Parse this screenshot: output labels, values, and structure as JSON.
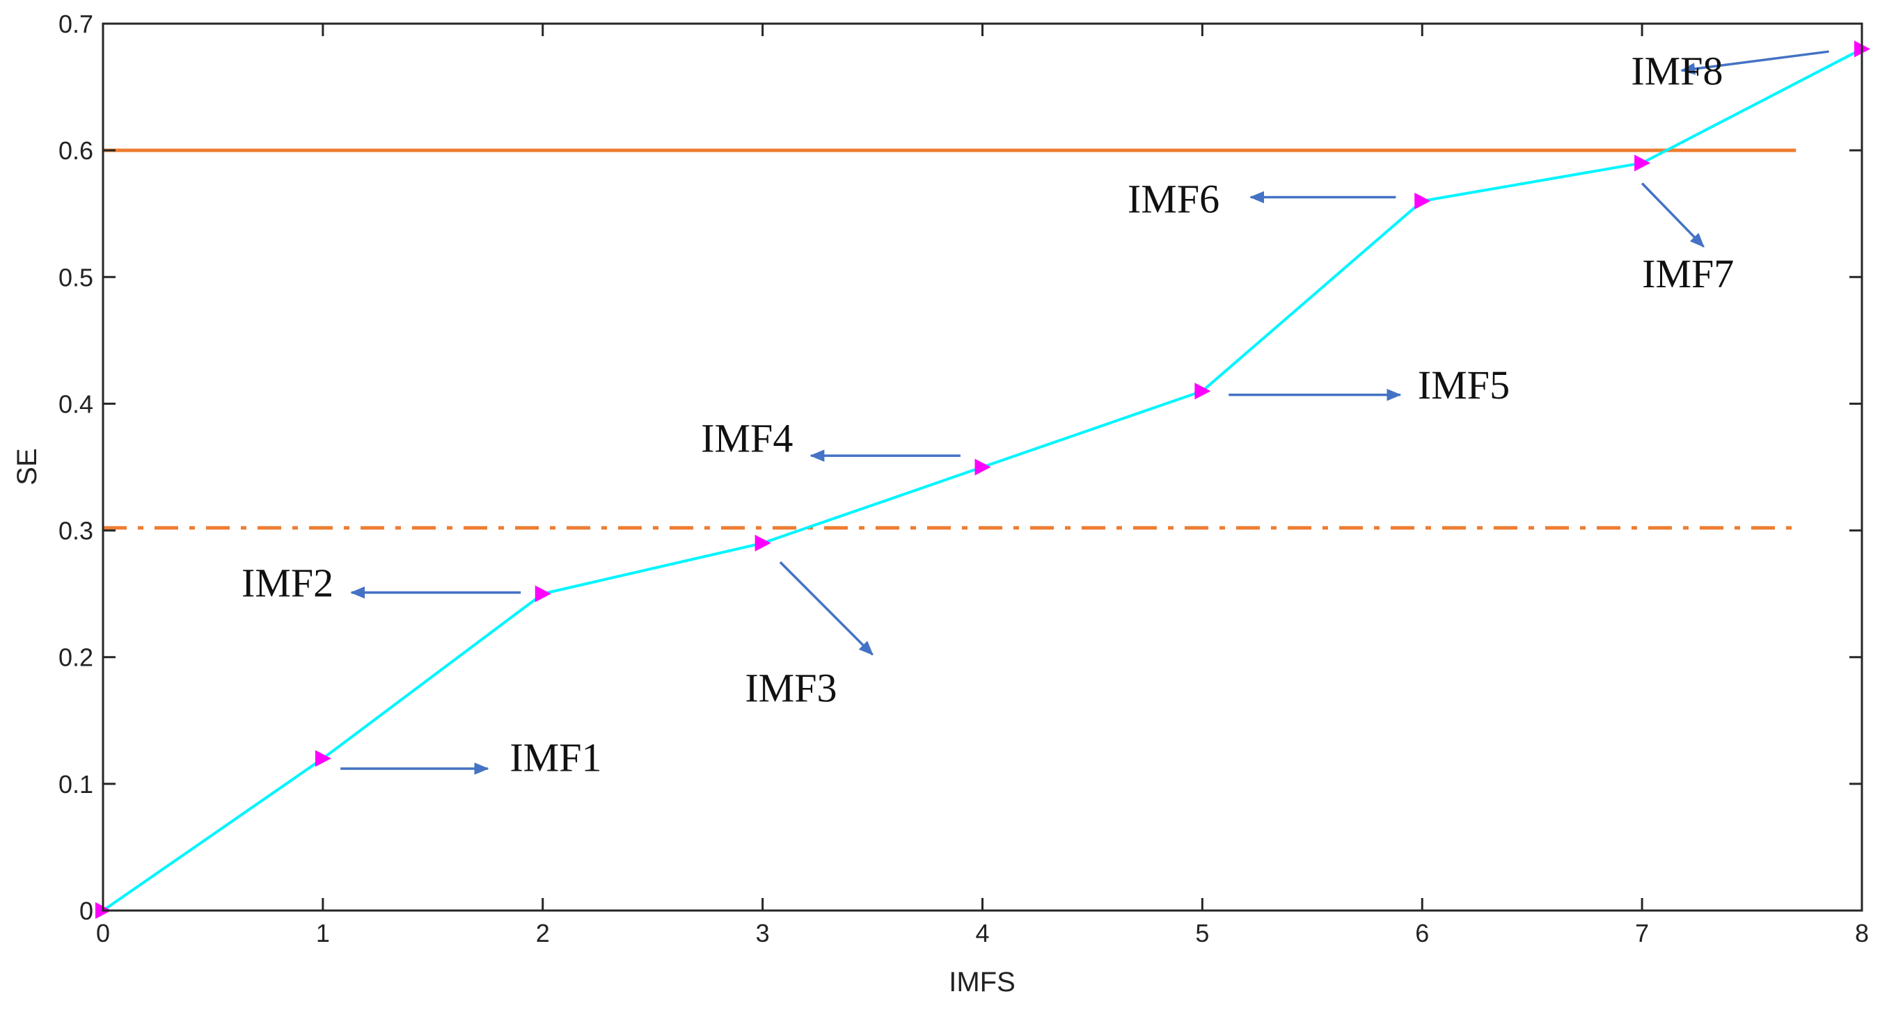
{
  "chart_data": {
    "type": "line",
    "title": "",
    "xlabel": "IMFS",
    "ylabel": "SE",
    "xlim": [
      0,
      8
    ],
    "ylim": [
      0,
      0.7
    ],
    "x_ticks": [
      "0",
      "1",
      "2",
      "3",
      "4",
      "5",
      "6",
      "7",
      "8"
    ],
    "y_ticks": [
      "0",
      "0.1",
      "0.2",
      "0.3",
      "0.4",
      "0.5",
      "0.6",
      "0.7"
    ],
    "grid": false,
    "legend": "none",
    "series": [
      {
        "x": [
          0,
          1,
          2,
          3,
          4,
          5,
          6,
          7,
          8
        ],
        "y": [
          0,
          0.12,
          0.25,
          0.29,
          0.35,
          0.41,
          0.56,
          0.59,
          0.68
        ],
        "line_color": "#00f5ff",
        "marker": "triangle-right",
        "marker_color": "#ff00ff"
      }
    ],
    "reference_lines": [
      {
        "y": 0.6,
        "x_end": 7.7,
        "style": "solid",
        "color": "#ed7d31"
      },
      {
        "y": 0.302,
        "x_end": 7.7,
        "style": "dash-dot",
        "color": "#ed7d31"
      }
    ],
    "annotations": [
      {
        "text": "IMF1",
        "point_index": 1,
        "text_x": 1.85,
        "text_y": 0.11,
        "arrow_from": [
          1.08,
          0.112
        ],
        "arrow_to": [
          1.75,
          0.112
        ]
      },
      {
        "text": "IMF2",
        "point_index": 2,
        "text_x": 0.63,
        "text_y": 0.248,
        "arrow_from": [
          1.9,
          0.251
        ],
        "arrow_to": [
          1.13,
          0.251
        ]
      },
      {
        "text": "IMF3",
        "point_index": 3,
        "text_x": 2.92,
        "text_y": 0.165,
        "arrow_from": [
          3.08,
          0.275
        ],
        "arrow_to": [
          3.5,
          0.202
        ]
      },
      {
        "text": "IMF4",
        "point_index": 4,
        "text_x": 2.72,
        "text_y": 0.362,
        "arrow_from": [
          3.9,
          0.359
        ],
        "arrow_to": [
          3.22,
          0.359
        ]
      },
      {
        "text": "IMF5",
        "point_index": 5,
        "text_x": 5.98,
        "text_y": 0.404,
        "arrow_from": [
          5.12,
          0.407
        ],
        "arrow_to": [
          5.9,
          0.407
        ]
      },
      {
        "text": "IMF6",
        "point_index": 6,
        "text_x": 4.66,
        "text_y": 0.551,
        "arrow_from": [
          5.88,
          0.563
        ],
        "arrow_to": [
          5.22,
          0.563
        ]
      },
      {
        "text": "IMF7",
        "point_index": 7,
        "text_x": 7.0,
        "text_y": 0.492,
        "arrow_from": [
          7.0,
          0.574
        ],
        "arrow_to": [
          7.28,
          0.524
        ]
      },
      {
        "text": "IMF8",
        "point_index": 8,
        "text_x": 6.95,
        "text_y": 0.652,
        "arrow_from": [
          7.85,
          0.678
        ],
        "arrow_to": [
          7.18,
          0.663
        ]
      }
    ],
    "arrow_color": "#4472c4"
  }
}
